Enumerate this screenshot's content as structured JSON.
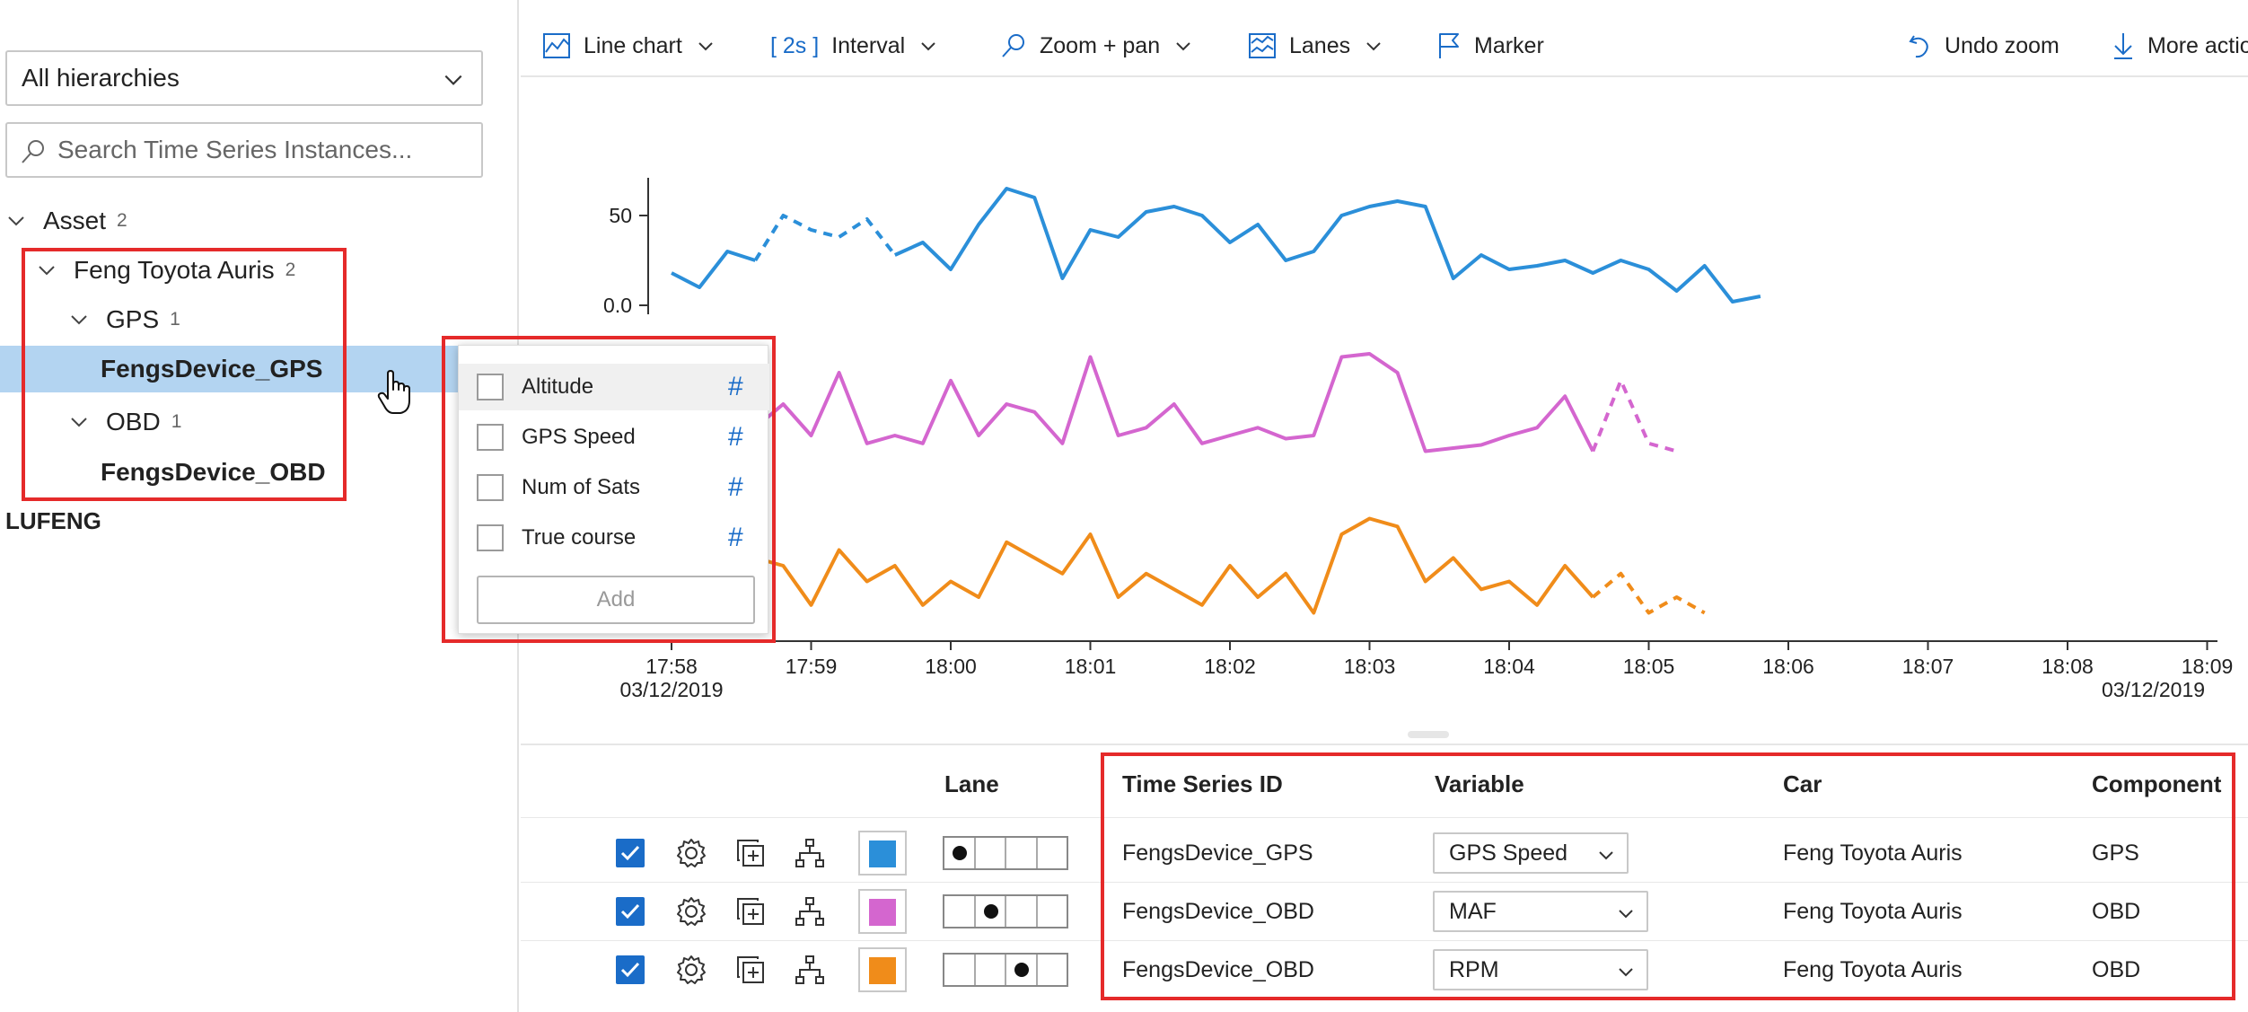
{
  "left_panel": {
    "hierarchy_select": "All hierarchies",
    "search_placeholder": "Search Time Series Instances...",
    "tree": {
      "asset": {
        "label": "Asset",
        "count": "2"
      },
      "car": {
        "label": "Feng Toyota Auris",
        "count": "2"
      },
      "gps": {
        "label": "GPS",
        "count": "1"
      },
      "gps_device": {
        "label": "FengsDevice_GPS"
      },
      "obd": {
        "label": "OBD",
        "count": "1"
      },
      "obd_device": {
        "label": "FengsDevice_OBD"
      }
    },
    "lufeng": "LUFENG"
  },
  "flyout": {
    "items": [
      {
        "label": "Altitude",
        "type": "#"
      },
      {
        "label": "GPS Speed",
        "type": "#"
      },
      {
        "label": "Num of Sats",
        "type": "#"
      },
      {
        "label": "True course",
        "type": "#"
      }
    ],
    "add_label": "Add"
  },
  "toolbar": {
    "chart_type": "Line chart",
    "interval_value": "[ 2s ]",
    "interval_label": "Interval",
    "zoom": "Zoom + pan",
    "lanes": "Lanes",
    "marker": "Marker",
    "undo": "Undo zoom",
    "more": "More actions"
  },
  "chart_data": {
    "type": "line",
    "x_ticks": [
      "17:58",
      "17:59",
      "18:00",
      "18:01",
      "18:02",
      "18:03",
      "18:04",
      "18:05",
      "18:06",
      "18:07",
      "18:08",
      "18:09"
    ],
    "x_sub_labels": {
      "first": "03/12/2019",
      "last": "03/12/2019"
    },
    "lane1_yticks": [
      "50",
      "0.0"
    ],
    "series": [
      {
        "name": "FengsDevice_GPS GPS Speed",
        "color": "#2b8fd9",
        "lane": 1,
        "x_min": [
          0,
          0.2,
          0.4,
          0.6,
          0.8,
          1.0,
          1.2,
          1.4,
          1.6,
          1.8,
          2.0,
          2.2,
          2.4,
          2.6,
          2.8,
          3.0,
          3.2,
          3.4,
          3.6,
          3.8,
          4.0,
          4.2,
          4.4,
          4.6,
          4.8,
          5.0,
          5.2,
          5.4,
          5.6,
          5.8,
          6.0,
          6.2,
          6.4,
          6.6,
          6.8,
          7.0,
          7.2,
          7.4,
          7.6,
          7.8
        ],
        "values": [
          18,
          10,
          30,
          25,
          50,
          42,
          38,
          48,
          28,
          35,
          20,
          45,
          65,
          60,
          15,
          42,
          38,
          52,
          55,
          50,
          35,
          45,
          25,
          30,
          50,
          55,
          58,
          55,
          15,
          28,
          20,
          22,
          25,
          18,
          25,
          20,
          8,
          22,
          2,
          5
        ],
        "dashed_range_min": [
          0.8,
          1.7
        ]
      },
      {
        "name": "FengsDevice_OBD MAF",
        "color": "#d466cf",
        "lane": 2,
        "x_min": [
          0,
          0.2,
          0.4,
          0.6,
          0.8,
          1.0,
          1.2,
          1.4,
          1.6,
          1.8,
          2.0,
          2.2,
          2.4,
          2.6,
          2.8,
          3.0,
          3.2,
          3.4,
          3.6,
          3.8,
          4.0,
          4.2,
          4.4,
          4.6,
          4.8,
          5.0,
          5.2,
          5.4,
          5.6,
          5.8,
          6.0,
          6.2,
          6.4,
          6.6,
          6.8,
          7.0,
          7.2
        ],
        "values": [
          70,
          45,
          20,
          25,
          40,
          20,
          60,
          15,
          20,
          15,
          55,
          20,
          40,
          35,
          15,
          70,
          20,
          25,
          40,
          15,
          20,
          25,
          18,
          20,
          70,
          72,
          60,
          10,
          12,
          14,
          20,
          25,
          45,
          10,
          55,
          15,
          10
        ],
        "dashed_range_min": [
          6.8,
          7.3
        ]
      },
      {
        "name": "FengsDevice_OBD RPM",
        "color": "#f08c1a",
        "lane": 3,
        "x_min": [
          0,
          0.2,
          0.4,
          0.6,
          0.8,
          1.0,
          1.2,
          1.4,
          1.6,
          1.8,
          2.0,
          2.2,
          2.4,
          2.6,
          2.8,
          3.0,
          3.2,
          3.4,
          3.6,
          3.8,
          4.0,
          4.2,
          4.4,
          4.6,
          4.8,
          5.0,
          5.2,
          5.4,
          5.6,
          5.8,
          6.0,
          6.2,
          6.4,
          6.6,
          6.8,
          7.0,
          7.2,
          7.4
        ],
        "values": [
          60,
          40,
          55,
          45,
          40,
          15,
          50,
          30,
          40,
          15,
          30,
          20,
          55,
          45,
          35,
          60,
          20,
          35,
          25,
          15,
          40,
          20,
          35,
          10,
          60,
          70,
          65,
          30,
          45,
          25,
          30,
          15,
          40,
          20,
          35,
          10,
          20,
          10
        ],
        "dashed_range_min": [
          6.8,
          7.4
        ]
      }
    ]
  },
  "table": {
    "headers": {
      "lane": "Lane",
      "tsid": "Time Series ID",
      "variable": "Variable",
      "car": "Car",
      "component": "Component"
    },
    "rows": [
      {
        "tsid": "FengsDevice_GPS",
        "variable": "GPS Speed",
        "car": "Feng Toyota Auris",
        "component": "GPS",
        "color": "#2b8fd9",
        "lane": 1
      },
      {
        "tsid": "FengsDevice_OBD",
        "variable": "MAF",
        "car": "Feng Toyota Auris",
        "component": "OBD",
        "color": "#d466cf",
        "lane": 2
      },
      {
        "tsid": "FengsDevice_OBD",
        "variable": "RPM",
        "car": "Feng Toyota Auris",
        "component": "OBD",
        "color": "#f08c1a",
        "lane": 3
      }
    ]
  },
  "colors": {
    "accent": "#1a6cc8",
    "selected_row": "#b3d4f1",
    "highlight": "#e52a2a"
  }
}
